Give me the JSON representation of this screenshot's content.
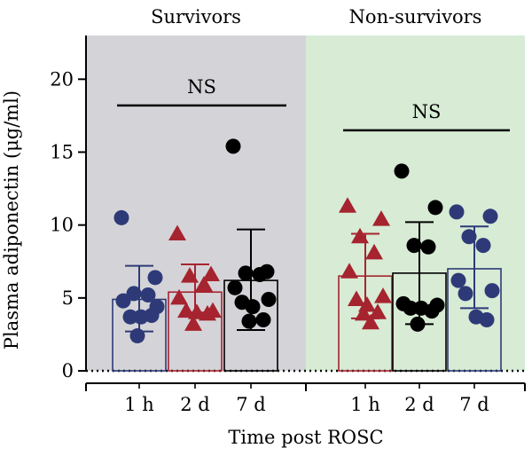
{
  "chart_data": {
    "type": "bar",
    "ylabel": "Plasma adiponectin (μg/ml)",
    "xlabel": "Time post ROSC",
    "ylim": [
      0,
      23
    ],
    "yticks": [
      0,
      5,
      10,
      15,
      20
    ],
    "groups": [
      {
        "name": "Survivors",
        "panel_color": "#d4d4d8",
        "annotation": "NS",
        "categories": [
          {
            "label": "1 h",
            "marker": "circle",
            "color": "#2e3a78",
            "mean": 4.9,
            "sd_low": 2.7,
            "sd_high": 7.2,
            "points": [
              10.5,
              6.4,
              5.3,
              5.2,
              4.8,
              4.4,
              3.7,
              3.7,
              3.8,
              2.4
            ]
          },
          {
            "label": "2 d",
            "marker": "triangle",
            "color": "#a6242f",
            "mean": 5.4,
            "sd_low": 4.0,
            "sd_high": 7.3,
            "points": [
              9.4,
              6.6,
              6.5,
              5.9,
              5.0,
              4.1,
              4.1,
              4.0,
              3.9,
              3.2
            ]
          },
          {
            "label": "7 d",
            "marker": "circle",
            "color": "#000000",
            "mean": 6.2,
            "sd_low": 2.8,
            "sd_high": 9.7,
            "points": [
              15.4,
              6.8,
              6.7,
              6.6,
              5.7,
              4.9,
              4.7,
              4.4,
              3.5,
              3.4
            ]
          }
        ]
      },
      {
        "name": "Non-survivors",
        "panel_color": "#d7ebd5",
        "annotation": "NS",
        "categories": [
          {
            "label": "1 h",
            "marker": "triangle",
            "color": "#a6242f",
            "mean": 6.5,
            "sd_low": 3.6,
            "sd_high": 9.4,
            "points": [
              11.3,
              10.4,
              9.2,
              8.1,
              6.8,
              5.1,
              4.9,
              4.5,
              4.0,
              3.9,
              3.3
            ]
          },
          {
            "label": "2 d",
            "marker": "circle",
            "color": "#000000",
            "mean": 6.7,
            "sd_low": 3.2,
            "sd_high": 10.2,
            "points": [
              13.7,
              11.2,
              8.6,
              8.5,
              4.6,
              4.5,
              4.3,
              4.3,
              4.1,
              3.2
            ]
          },
          {
            "label": "7 d",
            "marker": "circle",
            "color": "#2e3a78",
            "mean": 7.0,
            "sd_low": 4.3,
            "sd_high": 9.9,
            "points": [
              10.9,
              10.6,
              9.2,
              8.6,
              6.2,
              5.5,
              5.3,
              3.7,
              3.5
            ]
          }
        ]
      }
    ]
  }
}
